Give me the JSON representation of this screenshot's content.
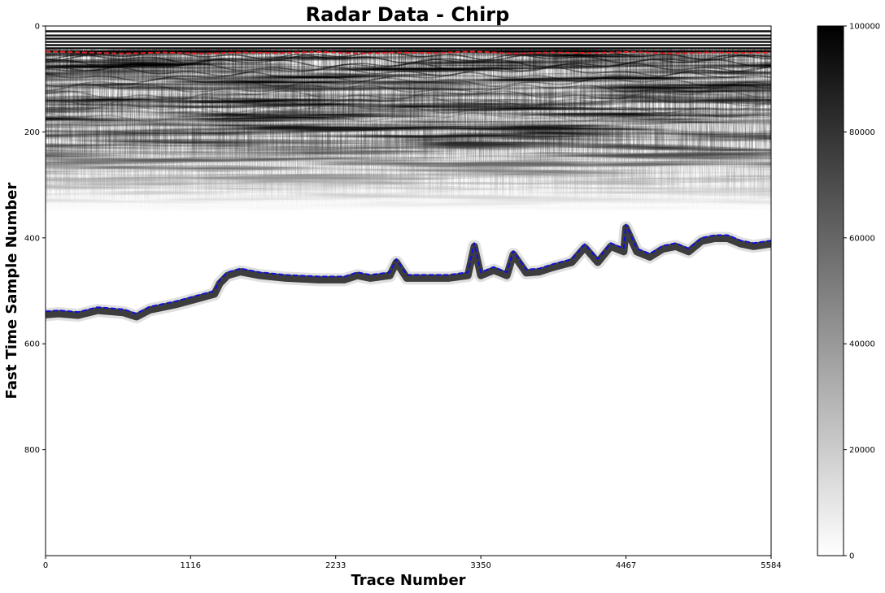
{
  "chart_data": {
    "type": "heatmap",
    "title": "Radar Data - Chirp",
    "xlabel": "Trace Number",
    "ylabel": "Fast Time Sample Number",
    "colormap": "Greys",
    "xlim": [
      0,
      5584
    ],
    "ylim": [
      1000,
      0
    ],
    "x_ticks": [
      0,
      1116,
      2233,
      3350,
      4467,
      5584
    ],
    "x_tick_labels": [
      "0",
      "1116",
      "2233",
      "3350",
      "4467",
      "5584"
    ],
    "y_ticks": [
      0,
      200,
      400,
      600,
      800
    ],
    "y_tick_labels": [
      "0",
      "200",
      "400",
      "600",
      "800"
    ],
    "colorbar": {
      "range": [
        0,
        100000
      ],
      "ticks": [
        0,
        20000,
        40000,
        60000,
        80000,
        100000
      ],
      "tick_labels": [
        "0",
        "20000",
        "40000",
        "60000",
        "80000",
        "100000"
      ]
    },
    "series": [
      {
        "color": "#e02020",
        "style": "dashed",
        "x": [
          0,
          300,
          600,
          900,
          1200,
          1500,
          1800,
          2100,
          2400,
          2700,
          3000,
          3300,
          3600,
          3900,
          4200,
          4500,
          4800,
          5100,
          5400,
          5584
        ],
        "y": [
          48,
          50,
          52,
          50,
          52,
          50,
          51,
          49,
          52,
          50,
          51,
          48,
          52,
          50,
          51,
          49,
          52,
          50,
          51,
          50
        ]
      },
      {
        "color": "#1010e0",
        "style": "dashed",
        "x": [
          0,
          100,
          250,
          400,
          600,
          700,
          800,
          1000,
          1150,
          1300,
          1340,
          1400,
          1500,
          1650,
          1850,
          2100,
          2300,
          2400,
          2500,
          2650,
          2700,
          2780,
          2900,
          3100,
          3250,
          3300,
          3350,
          3450,
          3550,
          3600,
          3700,
          3800,
          3900,
          4050,
          4150,
          4250,
          4350,
          4450,
          4467,
          4550,
          4650,
          4750,
          4850,
          4950,
          5050,
          5150,
          5250,
          5350,
          5450,
          5584
        ],
        "y": [
          539,
          537,
          540,
          531,
          535,
          543,
          530,
          520,
          510,
          500,
          480,
          465,
          458,
          465,
          470,
          473,
          473,
          465,
          470,
          465,
          440,
          470,
          470,
          470,
          465,
          410,
          465,
          455,
          465,
          425,
          460,
          458,
          450,
          440,
          412,
          440,
          410,
          420,
          375,
          420,
          430,
          415,
          410,
          420,
          400,
          395,
          395,
          405,
          410,
          405
        ]
      }
    ]
  }
}
